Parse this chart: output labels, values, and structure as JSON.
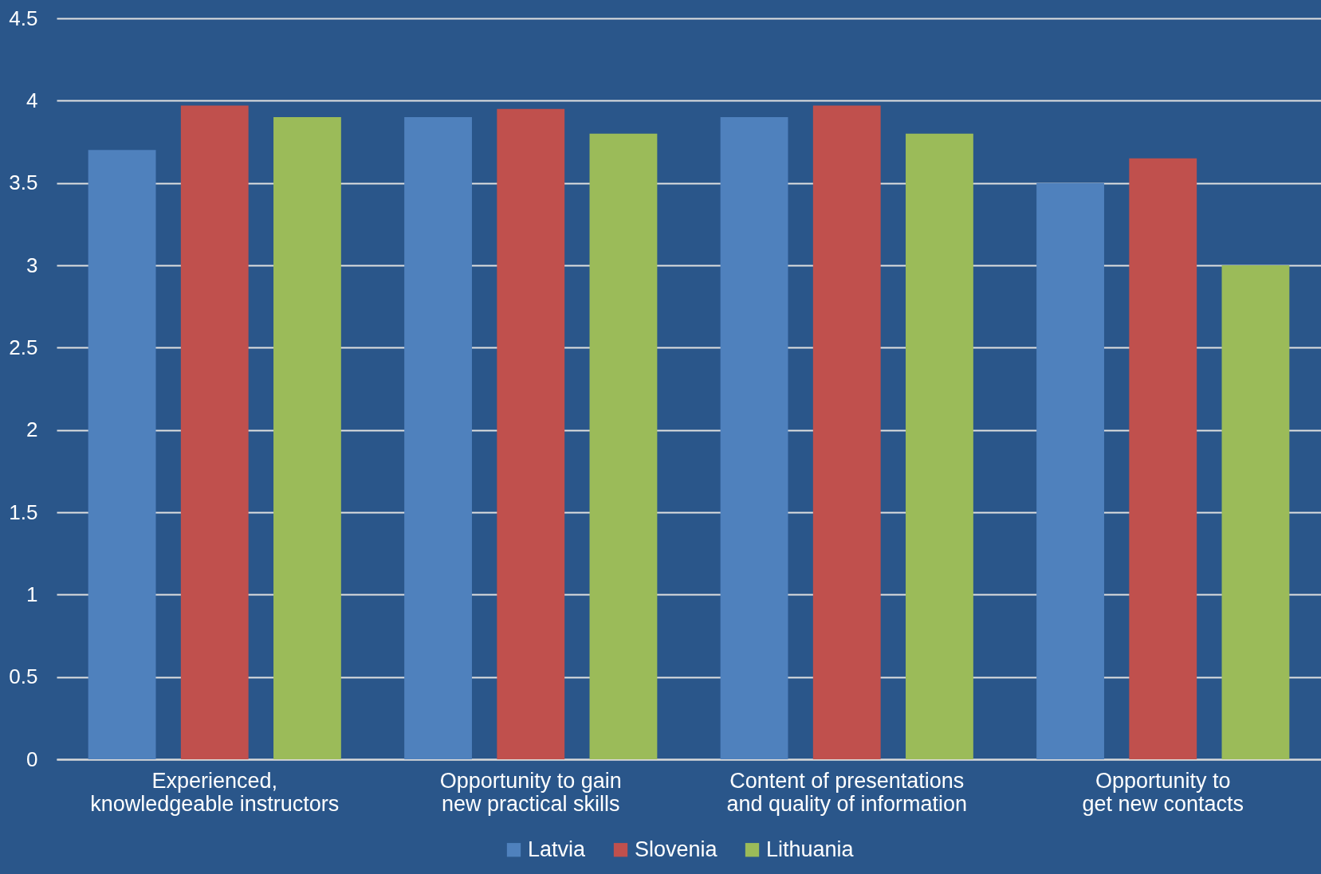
{
  "chart_data": {
    "type": "bar",
    "categories": [
      "Experienced, knowledgeable instructors",
      "Opportunity to gain new practical skills",
      "Content of presentations and quality of information",
      "Opportunity to get new contacts"
    ],
    "series": [
      {
        "name": "Latvia",
        "color": "#4f81bd",
        "values": [
          3.7,
          3.9,
          3.9,
          3.5
        ]
      },
      {
        "name": "Slovenia",
        "color": "#c0504d",
        "values": [
          3.97,
          3.95,
          3.97,
          3.65
        ]
      },
      {
        "name": "Lithuania",
        "color": "#9bbb59",
        "values": [
          3.9,
          3.8,
          3.8,
          3.0
        ]
      }
    ],
    "ylim": [
      0,
      4.5
    ],
    "yticks": [
      0,
      0.5,
      1,
      1.5,
      2,
      2.5,
      3,
      3.5,
      4,
      4.5
    ],
    "grid": "y",
    "legend": "bottom"
  }
}
